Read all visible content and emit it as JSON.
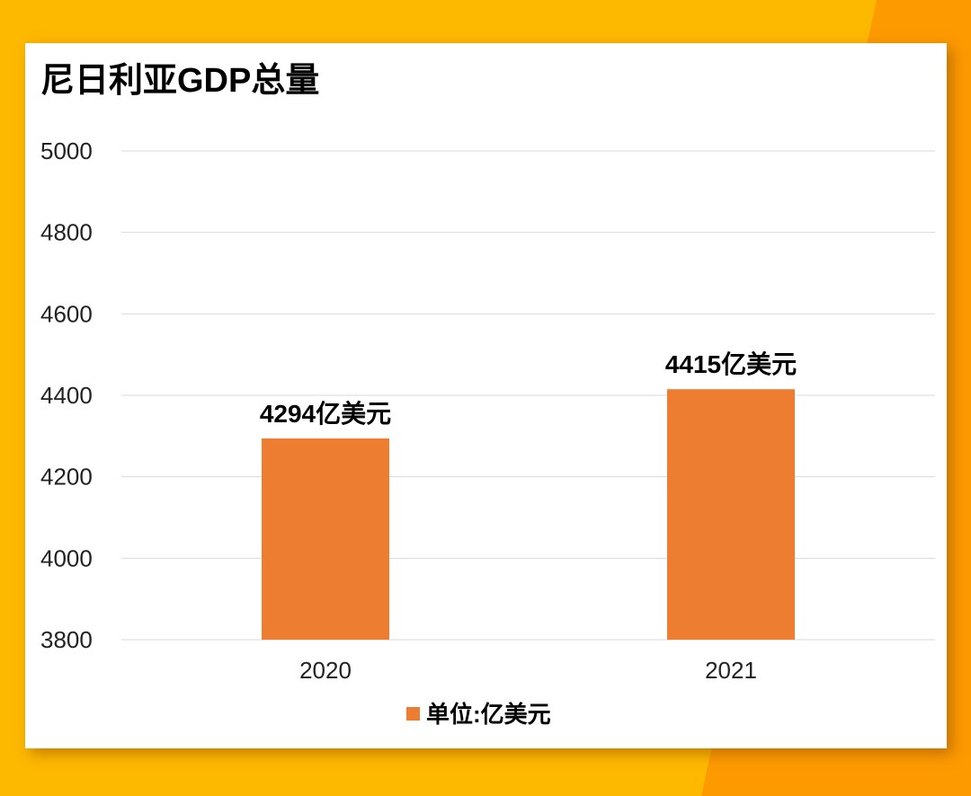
{
  "chart_data": {
    "type": "bar",
    "title": "尼日利亚GDP总量",
    "categories": [
      "2020",
      "2021"
    ],
    "series": [
      {
        "name": "单位:亿美元",
        "values": [
          4294,
          4415
        ]
      }
    ],
    "data_labels": [
      "4294亿美元",
      "4415亿美元"
    ],
    "ylim": [
      3800,
      5000
    ],
    "yticks": [
      3800,
      4000,
      4200,
      4400,
      4600,
      4800,
      5000
    ],
    "grid": true,
    "legend": "bottom",
    "colors": {
      "bar": "#ED7D31",
      "background": "#FDB800",
      "accent": "#FD9A00"
    }
  }
}
